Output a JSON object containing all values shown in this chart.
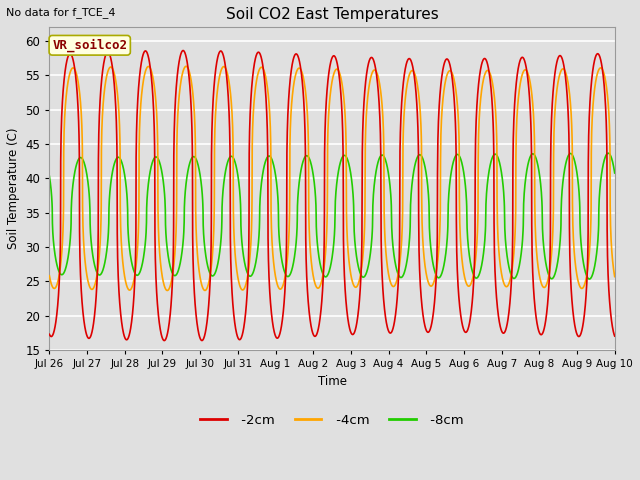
{
  "title": "Soil CO2 East Temperatures",
  "top_left_text": "No data for f_TCE_4",
  "ylabel": "Soil Temperature (C)",
  "xlabel": "Time",
  "ylim": [
    15,
    62
  ],
  "legend_label": "VR_soilco2",
  "series": {
    "-2cm": {
      "color": "#DD0000",
      "linewidth": 1.2
    },
    "-4cm": {
      "color": "#FFA500",
      "linewidth": 1.2
    },
    "-8cm": {
      "color": "#22CC00",
      "linewidth": 1.2
    }
  },
  "tick_labels": [
    "Jul 26",
    "Jul 27",
    "Jul 28",
    "Jul 29",
    "Jul 30",
    "Jul 31",
    "Aug 1",
    "Aug 2",
    "Aug 3",
    "Aug 4",
    "Aug 5",
    "Aug 6",
    "Aug 7",
    "Aug 8",
    "Aug 9",
    "Aug 10"
  ],
  "background_color": "#E0E0E0",
  "plot_bg_color": "#E0E0E0",
  "grid_color": "#FFFFFF",
  "legend_box_facecolor": "#FFFFE0",
  "legend_box_edgecolor": "#AAAA00"
}
